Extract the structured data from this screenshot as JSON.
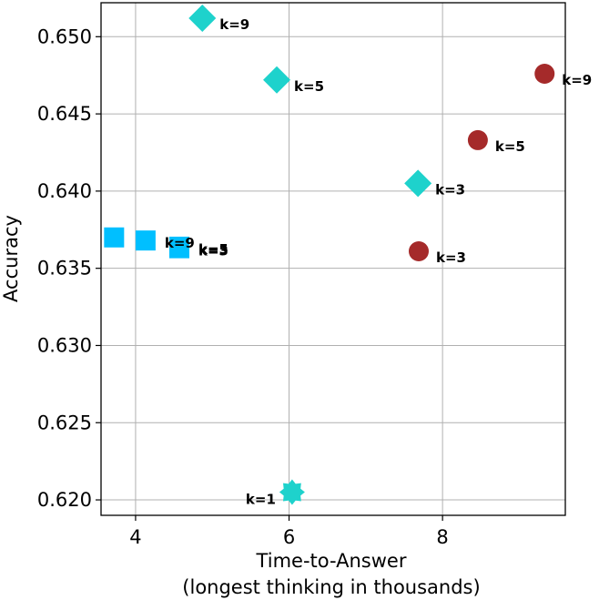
{
  "chart_data": {
    "type": "scatter",
    "xlabel": "Time-to-Answer",
    "xlabel_line2": "(longest thinking in thousands)",
    "ylabel": "Accuracy",
    "xlim": [
      3.55,
      9.6
    ],
    "ylim": [
      0.619,
      0.6522
    ],
    "xticks": [
      4,
      6,
      8
    ],
    "yticks": [
      0.62,
      0.625,
      0.63,
      0.635,
      0.64,
      0.645,
      0.65
    ],
    "grid": true,
    "colors": {
      "diamond": "#1ed2cc",
      "circle": "#a52a2a",
      "square": "#00bfff"
    },
    "series": [
      {
        "marker": "diamond",
        "color": "#1ed2cc",
        "points": [
          {
            "x": 4.87,
            "y": 0.6512,
            "label": "k=9"
          },
          {
            "x": 5.84,
            "y": 0.6472,
            "label": "k=5"
          },
          {
            "x": 7.68,
            "y": 0.6405,
            "label": "k=3"
          }
        ]
      },
      {
        "marker": "circle",
        "color": "#a52a2a",
        "points": [
          {
            "x": 9.33,
            "y": 0.6476,
            "label": "k=9"
          },
          {
            "x": 8.46,
            "y": 0.6433,
            "label": "k=5"
          },
          {
            "x": 7.69,
            "y": 0.6361,
            "label": "k=3"
          }
        ]
      },
      {
        "marker": "square",
        "color": "#00bfff",
        "points": [
          {
            "x": 3.72,
            "y": 0.637,
            "label": ""
          },
          {
            "x": 4.13,
            "y": 0.6368,
            "label": "k=9"
          },
          {
            "x": 4.57,
            "y": 0.6364,
            "label": "k=5"
          },
          {
            "x": 4.57,
            "y": 0.6363,
            "label": "k=3"
          }
        ]
      },
      {
        "marker": "star",
        "color": "#1ed2cc",
        "points": [
          {
            "x": 6.04,
            "y": 0.6205,
            "label": "k=1"
          }
        ]
      }
    ]
  }
}
